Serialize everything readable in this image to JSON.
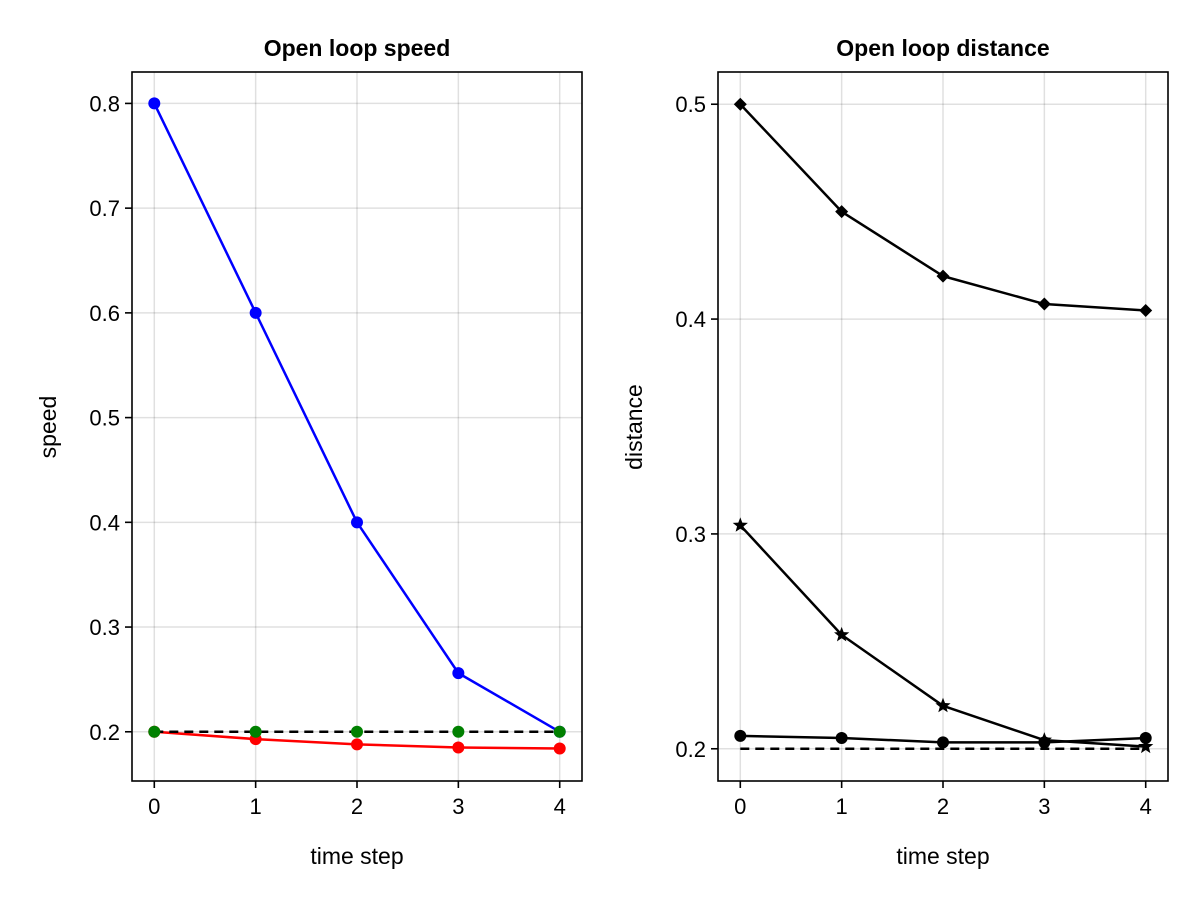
{
  "chart_data": [
    {
      "type": "line",
      "title": "Open loop speed",
      "xlabel": "time step",
      "ylabel": "speed",
      "x": [
        0,
        1,
        2,
        3,
        4
      ],
      "xticks": [
        "0",
        "1",
        "2",
        "3",
        "4"
      ],
      "yticks": [
        "0.2",
        "0.3",
        "0.4",
        "0.5",
        "0.6",
        "0.7",
        "0.8"
      ],
      "xlim": [
        -0.22,
        4.22
      ],
      "ylim": [
        0.153,
        0.83
      ],
      "grid": true,
      "series": [
        {
          "values": [
            0.8,
            0.6,
            0.4,
            0.256,
            0.2
          ],
          "color": "#0000ff",
          "marker": "circle",
          "style": "solid"
        },
        {
          "values": [
            0.2,
            0.193,
            0.188,
            0.185,
            0.184
          ],
          "color": "#ff0000",
          "marker": "circle",
          "style": "solid"
        },
        {
          "values": [
            0.2,
            0.2,
            0.2,
            0.2,
            0.2
          ],
          "color": "#000000",
          "marker": "none",
          "style": "dashed"
        },
        {
          "values": [
            0.2,
            0.2,
            0.2,
            0.2,
            0.2
          ],
          "color": "#008000",
          "marker": "circle",
          "style": "none"
        }
      ]
    },
    {
      "type": "line",
      "title": "Open loop distance",
      "xlabel": "time step",
      "ylabel": "distance",
      "x": [
        0,
        1,
        2,
        3,
        4
      ],
      "xticks": [
        "0",
        "1",
        "2",
        "3",
        "4"
      ],
      "yticks": [
        "0.2",
        "0.3",
        "0.4",
        "0.5"
      ],
      "xlim": [
        -0.22,
        4.22
      ],
      "ylim": [
        0.185,
        0.515
      ],
      "grid": true,
      "series": [
        {
          "values": [
            0.5,
            0.45,
            0.42,
            0.407,
            0.404
          ],
          "color": "#000000",
          "marker": "diamond",
          "style": "solid"
        },
        {
          "values": [
            0.304,
            0.253,
            0.22,
            0.204,
            0.201
          ],
          "color": "#000000",
          "marker": "star",
          "style": "solid"
        },
        {
          "values": [
            0.206,
            0.205,
            0.203,
            0.203,
            0.205
          ],
          "color": "#000000",
          "marker": "circle",
          "style": "solid"
        },
        {
          "values": [
            0.2,
            0.2,
            0.2,
            0.2,
            0.2
          ],
          "color": "#000000",
          "marker": "none",
          "style": "dashed"
        }
      ]
    }
  ]
}
